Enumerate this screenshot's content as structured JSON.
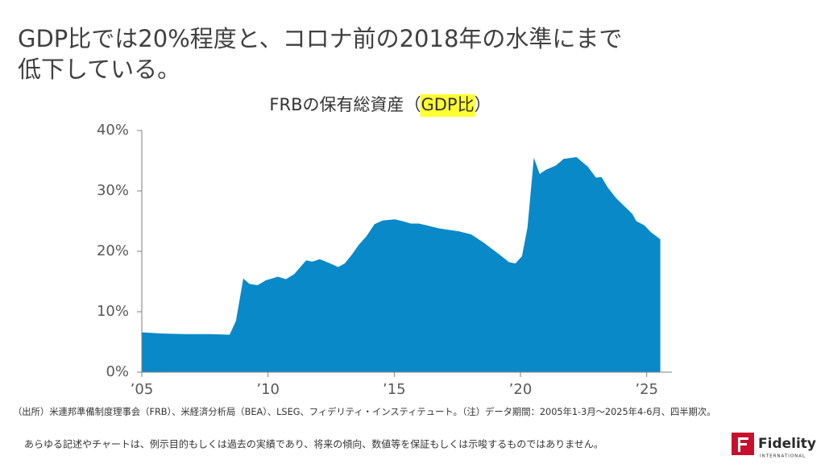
{
  "headline": [
    "GDP比では20%程度と、コロナ前の2018年の水準にまで",
    "低下している。"
  ],
  "chart_data": {
    "type": "area",
    "title": [
      {
        "text": "FRBの保有総資産（"
      },
      {
        "text": "GDP比",
        "highlight": "#ffff33"
      },
      {
        "text": "）"
      }
    ],
    "x": [
      2005.0,
      2005.77,
      2006.72,
      2007.68,
      2008.48,
      2008.73,
      2009.02,
      2009.27,
      2009.59,
      2009.91,
      2010.39,
      2010.71,
      2011.03,
      2011.51,
      2011.76,
      2012.05,
      2012.46,
      2012.78,
      2013.04,
      2013.33,
      2013.58,
      2013.9,
      2014.22,
      2014.54,
      2015.02,
      2015.33,
      2015.65,
      2015.97,
      2016.29,
      2016.77,
      2017.25,
      2017.57,
      2018.05,
      2018.52,
      2018.84,
      2019.16,
      2019.55,
      2019.8,
      2020.06,
      2020.28,
      2020.53,
      2020.76,
      2021.01,
      2021.4,
      2021.71,
      2022.22,
      2022.67,
      2022.99,
      2023.21,
      2023.47,
      2023.79,
      2024.11,
      2024.43,
      2024.59,
      2024.91,
      2025.16,
      2025.38,
      2025.54
    ],
    "series": [
      {
        "color": "#0a89c9",
        "values": [
          6.6,
          6.4,
          6.3,
          6.3,
          6.2,
          8.5,
          15.5,
          14.6,
          14.4,
          15.2,
          15.8,
          15.4,
          16.2,
          18.5,
          18.3,
          18.7,
          18.0,
          17.4,
          18.0,
          19.5,
          21.0,
          22.5,
          24.5,
          25.1,
          25.3,
          25.0,
          24.6,
          24.6,
          24.3,
          23.8,
          23.5,
          23.3,
          22.8,
          21.5,
          20.5,
          19.5,
          18.2,
          18.0,
          19.2,
          24.0,
          35.5,
          32.8,
          33.5,
          34.2,
          35.3,
          35.6,
          34.0,
          32.2,
          32.3,
          30.5,
          28.8,
          27.5,
          26.2,
          25.0,
          24.3,
          23.2,
          22.5,
          22.0
        ]
      }
    ],
    "xlim": [
      2005,
      2026
    ],
    "xticks": [
      {
        "value": 2005,
        "label": "’05"
      },
      {
        "value": 2010,
        "label": "’10"
      },
      {
        "value": 2015,
        "label": "’15"
      },
      {
        "value": 2020,
        "label": "’20"
      },
      {
        "value": 2025,
        "label": "’25"
      }
    ],
    "ylim": [
      0,
      40
    ],
    "yticks": [
      {
        "value": 0,
        "label": "0%"
      },
      {
        "value": 10,
        "label": "10%"
      },
      {
        "value": 20,
        "label": "20%"
      },
      {
        "value": 30,
        "label": "30%"
      },
      {
        "value": 40,
        "label": "40%"
      }
    ],
    "grid": false
  },
  "source": "（出所）米連邦準備制度理事会（FRB）、米経済分析局（BEA）、LSEG、フィデリティ・インスティテュート。（注）データ期間：2005年1-3月～2025年4-6月、四半期次。",
  "disclaimer": "あらゆる記述やチャートは、例示目的もしくは過去の実績であり、将来の傾向、数値等を保証もしくは示唆するものではありません。",
  "logo": {
    "name": "Fidelity",
    "sub": "INTERNATIONAL"
  }
}
